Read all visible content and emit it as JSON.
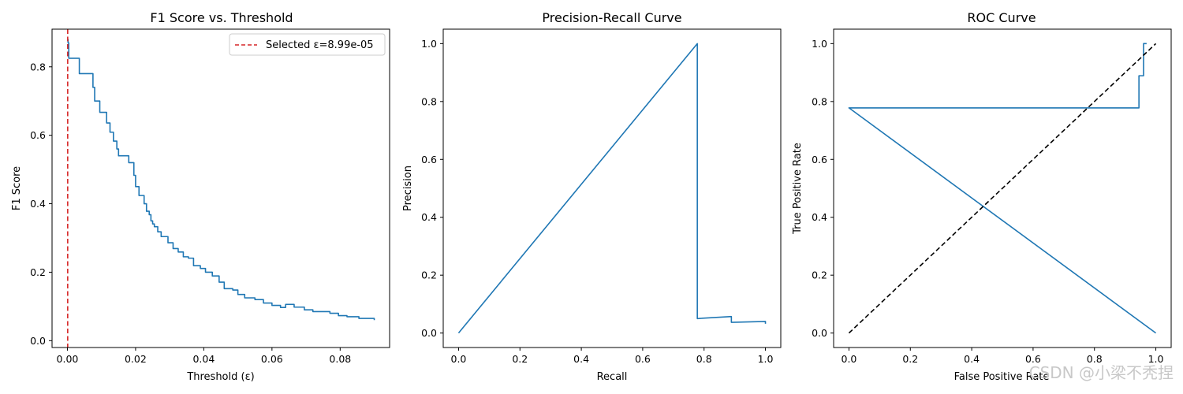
{
  "chart_data": [
    {
      "type": "line",
      "title": "F1 Score vs. Threshold",
      "xlabel": "Threshold (ε)",
      "ylabel": "F1 Score",
      "xlim": [
        -0.0045,
        0.0945
      ],
      "ylim": [
        -0.02,
        0.91
      ],
      "xticks": [
        0.0,
        0.02,
        0.04,
        0.06,
        0.08
      ],
      "xtick_labels": [
        "0.00",
        "0.02",
        "0.04",
        "0.06",
        "0.08"
      ],
      "yticks": [
        0.0,
        0.2,
        0.4,
        0.6,
        0.8
      ],
      "ytick_labels": [
        "0.0",
        "0.2",
        "0.4",
        "0.6",
        "0.8"
      ],
      "grid": false,
      "legend": {
        "placement": "top-right",
        "entries": [
          {
            "label": "Selected ε=8.99e-05",
            "color": "#d62728",
            "style": "dashed"
          }
        ]
      },
      "series": [
        {
          "color": "#1f77b4",
          "step": true,
          "x": [
            0.0,
            0.0002,
            0.0004,
            0.0006,
            0.0035,
            0.0075,
            0.008,
            0.0095,
            0.0105,
            0.0115,
            0.0125,
            0.0135,
            0.0145,
            0.015,
            0.016,
            0.018,
            0.0195,
            0.02,
            0.021,
            0.0215,
            0.0225,
            0.0232,
            0.024,
            0.0245,
            0.025,
            0.0255,
            0.0265,
            0.0275,
            0.0285,
            0.0295,
            0.031,
            0.0325,
            0.034,
            0.0355,
            0.037,
            0.039,
            0.0405,
            0.0425,
            0.0445,
            0.046,
            0.0485,
            0.05,
            0.052,
            0.055,
            0.0575,
            0.06,
            0.0625,
            0.064,
            0.0665,
            0.0695,
            0.072,
            0.077,
            0.0795,
            0.082,
            0.0855,
            0.09
          ],
          "y": [
            0.88,
            0.87,
            0.825,
            0.825,
            0.78,
            0.74,
            0.7,
            0.667,
            0.667,
            0.636,
            0.609,
            0.583,
            0.56,
            0.54,
            0.54,
            0.52,
            0.483,
            0.45,
            0.424,
            0.424,
            0.4,
            0.378,
            0.368,
            0.35,
            0.341,
            0.333,
            0.318,
            0.304,
            0.304,
            0.286,
            0.269,
            0.259,
            0.245,
            0.241,
            0.219,
            0.211,
            0.2,
            0.189,
            0.171,
            0.152,
            0.148,
            0.135,
            0.125,
            0.12,
            0.11,
            0.103,
            0.097,
            0.106,
            0.098,
            0.09,
            0.085,
            0.08,
            0.073,
            0.07,
            0.065,
            0.06
          ]
        },
        {
          "name": "Selected ε=8.99e-05",
          "color": "#d62728",
          "style": "dashed",
          "vertical_x": 8.99e-05
        }
      ]
    },
    {
      "type": "line",
      "title": "Precision-Recall Curve",
      "xlabel": "Recall",
      "ylabel": "Precision",
      "xlim": [
        -0.05,
        1.05
      ],
      "ylim": [
        -0.05,
        1.05
      ],
      "xticks": [
        0.0,
        0.2,
        0.4,
        0.6,
        0.8,
        1.0
      ],
      "xtick_labels": [
        "0.0",
        "0.2",
        "0.4",
        "0.6",
        "0.8",
        "1.0"
      ],
      "yticks": [
        0.0,
        0.2,
        0.4,
        0.6,
        0.8,
        1.0
      ],
      "ytick_labels": [
        "0.0",
        "0.2",
        "0.4",
        "0.6",
        "0.8",
        "1.0"
      ],
      "grid": false,
      "series": [
        {
          "color": "#1f77b4",
          "x": [
            0.0,
            0.778,
            0.778,
            0.889,
            0.889,
            1.0,
            1.0
          ],
          "y": [
            0.0,
            1.0,
            0.05,
            0.057,
            0.037,
            0.04,
            0.032
          ]
        }
      ]
    },
    {
      "type": "line",
      "title": "ROC Curve",
      "xlabel": "False Positive Rate",
      "ylabel": "True Positive Rate",
      "xlim": [
        -0.05,
        1.05
      ],
      "ylim": [
        -0.05,
        1.05
      ],
      "xticks": [
        0.0,
        0.2,
        0.4,
        0.6,
        0.8,
        1.0
      ],
      "xtick_labels": [
        "0.0",
        "0.2",
        "0.4",
        "0.6",
        "0.8",
        "1.0"
      ],
      "yticks": [
        0.0,
        0.2,
        0.4,
        0.6,
        0.8,
        1.0
      ],
      "ytick_labels": [
        "0.0",
        "0.2",
        "0.4",
        "0.6",
        "0.8",
        "1.0"
      ],
      "grid": false,
      "series": [
        {
          "color": "#1f77b4",
          "x": [
            1.0,
            0.0,
            0.945,
            0.945,
            0.953,
            0.953,
            0.96,
            0.96,
            0.97
          ],
          "y": [
            0.0,
            0.778,
            0.778,
            0.889,
            0.889,
            0.889,
            0.889,
            1.0,
            1.0
          ]
        },
        {
          "color": "#000000",
          "style": "dashed",
          "x": [
            0.0,
            1.0
          ],
          "y": [
            0.0,
            1.0
          ]
        }
      ]
    }
  ],
  "watermark": "CSDN @小梁不秃捏"
}
